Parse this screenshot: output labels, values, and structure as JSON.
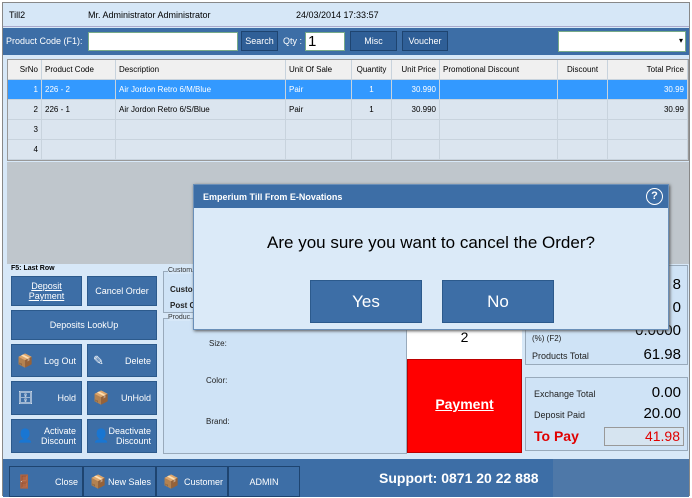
{
  "title": {
    "till": "Till2",
    "user": "Mr. Administrator Administrator",
    "datetime": "24/03/2014 17:33:57"
  },
  "toolbar": {
    "product_code_label": "Product Code (F1):",
    "product_code_value": "",
    "search": "Search",
    "qty_label": "Qty :",
    "qty_value": "1",
    "misc": "Misc",
    "voucher": "Voucher",
    "dropdown_value": ""
  },
  "grid": {
    "headers": [
      "SrNo",
      "Product Code",
      "Description",
      "Unit Of Sale",
      "Quantity",
      "Unit Price",
      "Promotional Discount",
      "Discount",
      "Total Price"
    ],
    "rows": [
      [
        "1",
        "226 - 2",
        "Air Jordon Retro 6/M/Blue",
        "Pair",
        "1",
        "30.990",
        "",
        "",
        "30.99"
      ],
      [
        "2",
        "226 - 1",
        "Air Jordon Retro 6/S/Blue",
        "Pair",
        "1",
        "30.990",
        "",
        "",
        "30.99"
      ],
      [
        "3",
        "",
        "",
        "",
        "",
        "",
        "",
        "",
        ""
      ],
      [
        "4",
        "",
        "",
        "",
        "",
        "",
        "",
        "",
        ""
      ]
    ],
    "selected_row": 1
  },
  "left": {
    "hint": "F5: Last Row",
    "deposit_payment": "Deposit Payment",
    "cancel_order": "Cancel Order",
    "deposits_lookup": "Deposits LookUp",
    "log_out": "Log Out",
    "delete": "Delete",
    "hold": "Hold",
    "unhold": "UnHold",
    "activate_discount": "Activate Discount",
    "deactivate_discount": "Deactivate Discount"
  },
  "customer": {
    "legend": "Custom",
    "customer_label": "Custo",
    "postcode_label": "Post C"
  },
  "product": {
    "legend": "Produc",
    "size": "Size:",
    "color": "Color:",
    "brand": "Brand:"
  },
  "center": {
    "qty_total": "2",
    "payment": "Payment"
  },
  "totals": {
    "line1_value": "8",
    "line2_value": "0",
    "discount_value": "0.0000",
    "discount_label": "(%) (F2)",
    "products_total_label": "Products Total",
    "products_total": "61.98",
    "exchange_total_label": "Exchange Total",
    "exchange_total": "0.00",
    "deposit_paid_label": "Deposit Paid",
    "deposit_paid": "20.00",
    "to_pay_label": "To Pay",
    "to_pay": "41.98"
  },
  "bottom": {
    "close": "Close",
    "new_sales": "New Sales",
    "customer": "Customer",
    "admin": "ADMIN",
    "support": "Support: 0871 20 22 888"
  },
  "dialog": {
    "title": "Emperium Till From E-Novations",
    "message": "Are you sure you want to cancel the Order?",
    "yes": "Yes",
    "no": "No"
  },
  "colors": {
    "accent": "#3d6ea6",
    "selected_row": "#3399ff",
    "payment": "#ff0000",
    "to_pay": "#e00000"
  }
}
